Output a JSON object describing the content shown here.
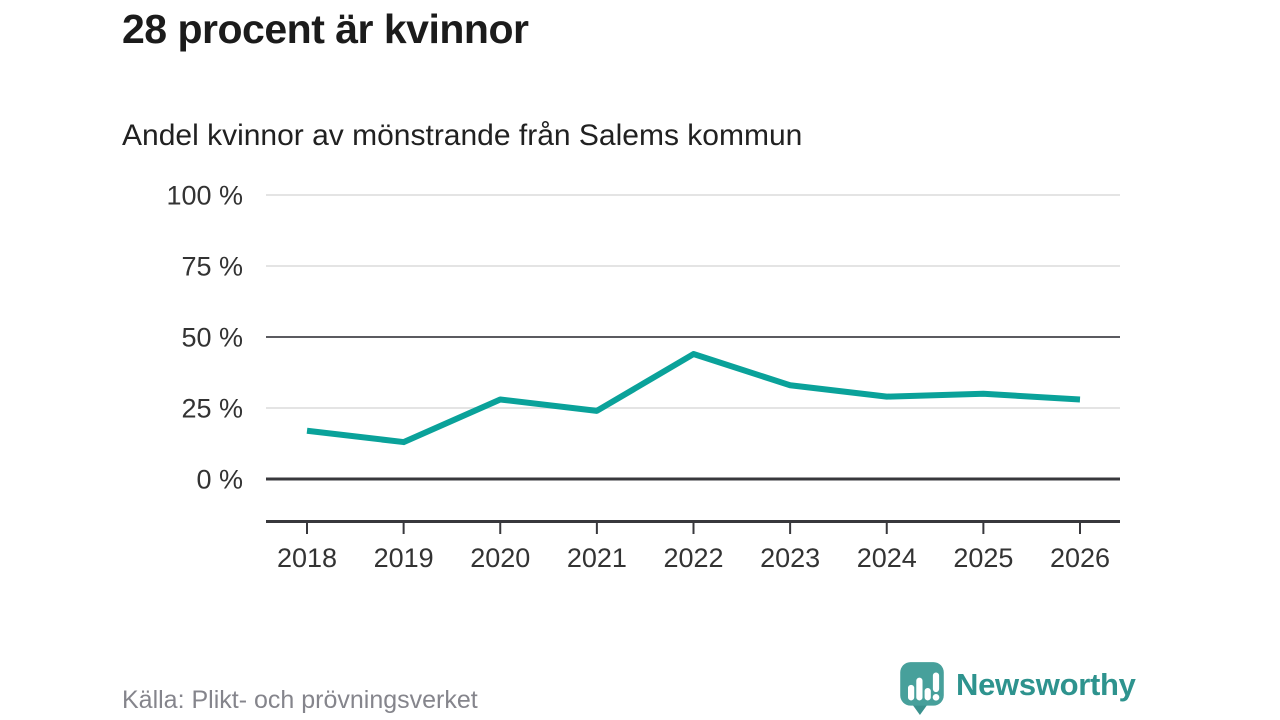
{
  "header": {
    "title": "28 procent är kvinnor",
    "subtitle": "Andel kvinnor av mönstrande från Salems kommun"
  },
  "footer": {
    "source": "Källa: Plikt- och prövningsverket",
    "brand": "Newsworthy"
  },
  "colors": {
    "line": "#0aa29a",
    "grid_light": "#e4e4e4",
    "grid_mid": "#5b5b60",
    "grid_zero": "#38383c",
    "axis": "#38383c",
    "tick_text": "#333333",
    "title_text": "#1b1b1b",
    "source_text": "#85858c",
    "brand_teal": "#2e938e",
    "logo_fill": "#47a09b",
    "logo_tail": "#3a918d"
  },
  "chart_data": {
    "type": "line",
    "title": "28 procent är kvinnor",
    "subtitle": "Andel kvinnor av mönstrande från Salems kommun",
    "x": [
      2018,
      2019,
      2020,
      2021,
      2022,
      2023,
      2024,
      2025,
      2026
    ],
    "series": [
      {
        "name": "Andel kvinnor av mönstrande",
        "values": [
          17,
          13,
          28,
          24,
          44,
          33,
          29,
          30,
          28
        ],
        "color": "#0aa29a"
      }
    ],
    "unit": "%",
    "ylim": [
      0,
      100
    ],
    "yticks": [
      0,
      25,
      50,
      75,
      100
    ],
    "ytick_suffix": " %",
    "grid": "horizontal",
    "emphasized_gridlines": [
      0,
      50
    ],
    "legend": "none",
    "source": "Källa: Plikt- och prövningsverket"
  }
}
